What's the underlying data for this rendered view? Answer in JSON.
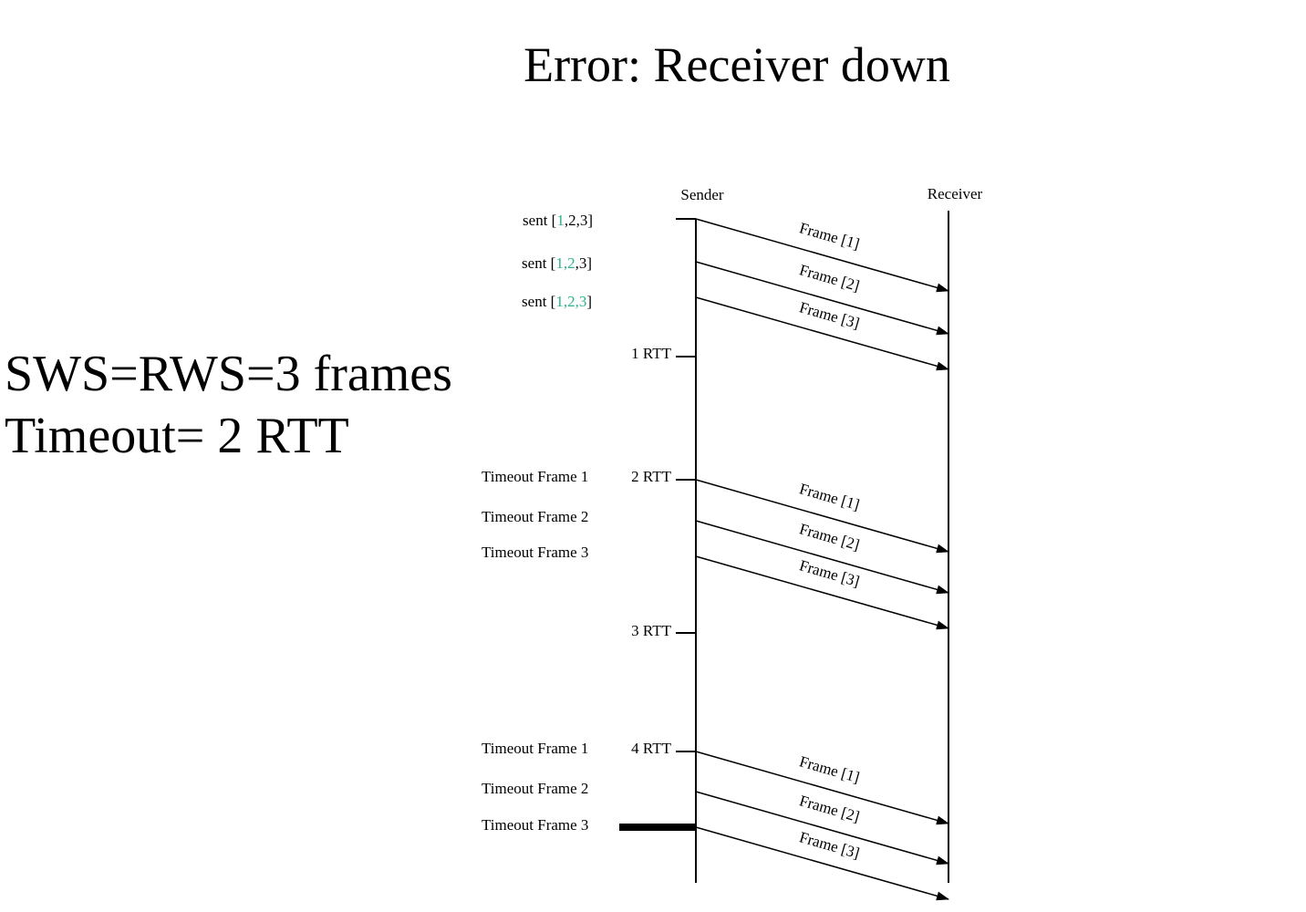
{
  "title": "Error: Receiver down",
  "params": {
    "line1": "SWS=RWS=3 frames",
    "line2": "Timeout= 2 RTT"
  },
  "colors": {
    "highlight": "#2fb08f",
    "line": "#000000"
  },
  "lifelines": {
    "sender": "Sender",
    "receiver": "Receiver"
  },
  "sent_labels": [
    {
      "prefix": "sent [",
      "items": [
        "1",
        ",2,3"
      ],
      "highlight_count": 1,
      "suffix": "]"
    },
    {
      "prefix": "sent [",
      "items": [
        "1,2",
        ",3"
      ],
      "highlight_count": 1,
      "suffix": "]"
    },
    {
      "prefix": "sent [",
      "items": [
        "1,2,3",
        ""
      ],
      "highlight_count": 1,
      "suffix": "]"
    }
  ],
  "rtt_labels": [
    "1 RTT",
    "2 RTT",
    "3 RTT",
    "4 RTT"
  ],
  "timeout_groups": [
    [
      "Timeout Frame 1",
      "Timeout Frame 2",
      "Timeout Frame 3"
    ],
    [
      "Timeout Frame 1",
      "Timeout Frame 2",
      "Timeout Frame 3"
    ]
  ],
  "frame_groups": [
    [
      "Frame [1]",
      "Frame [2]",
      "Frame [3]"
    ],
    [
      "Frame [1]",
      "Frame [2]",
      "Frame [3]"
    ],
    [
      "Frame [1]",
      "Frame [2]",
      "Frame [3]"
    ]
  ]
}
